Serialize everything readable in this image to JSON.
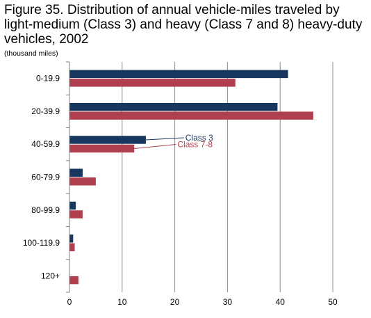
{
  "chart_data": {
    "type": "bar",
    "orientation": "horizontal",
    "title": "Figure 35. Distribution of annual vehicle-miles traveled by light-medium (Class 3) and heavy (Class 7 and 8) heavy-duty vehicles, 2002",
    "unit_label": "(thousand miles)",
    "xlabel": "",
    "ylabel": "(thousand miles)",
    "xlim": [
      0,
      50
    ],
    "x_ticks": [
      0,
      10,
      20,
      30,
      40,
      50
    ],
    "grid": "vertical",
    "categories": [
      "0-19.9",
      "20-39.9",
      "40-59.9",
      "60-79.9",
      "80-99.9",
      "100-119.9",
      "120+"
    ],
    "series": [
      {
        "name": "Class 3",
        "color": "#17375e",
        "values": [
          41.5,
          39.5,
          14.5,
          2.5,
          1.2,
          0.7,
          0
        ]
      },
      {
        "name": "Class 7-8",
        "color": "#b0404f",
        "values": [
          31.5,
          46.3,
          12.3,
          5.0,
          2.5,
          1.0,
          1.7
        ]
      }
    ],
    "legend_placement": "inline callouts"
  }
}
